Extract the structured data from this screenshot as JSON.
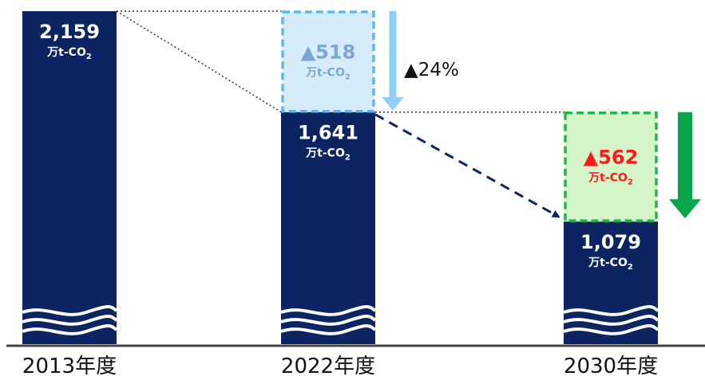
{
  "chart_data": {
    "type": "bar",
    "categories": [
      "2013年度",
      "2022年度",
      "2030年度"
    ],
    "values": [
      2159,
      1641,
      1079
    ],
    "value_labels": [
      "2,159",
      "1,641",
      "1,079"
    ],
    "unit": "万t-CO",
    "unit_sub": "2",
    "reductions": [
      {
        "from_category": "2013年度",
        "to_category": "2022年度",
        "value": 518,
        "label": "▲518"
      },
      {
        "from_category": "2022年度",
        "to_category": "2030年度",
        "value": 562,
        "label": "▲562"
      }
    ],
    "percent_annotation": "▲24%",
    "axis_break": true,
    "colors": {
      "bar": "#0c2461",
      "reduction_blue_fill": "#d6ecfa",
      "reduction_blue_border": "#5bb8f0",
      "reduction_blue_text": "#7aa6d6",
      "reduction_green_fill": "#d4f5c8",
      "reduction_green_border": "#25b34b",
      "reduction_red_text": "#ff1a1a",
      "arrow_blue": "#8fd0f5",
      "arrow_green": "#0aa64b",
      "axis": "#444444"
    }
  }
}
